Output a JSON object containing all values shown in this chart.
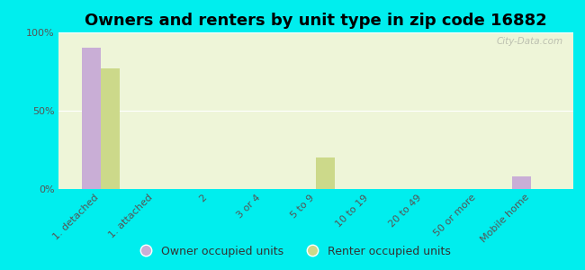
{
  "title": "Owners and renters by unit type in zip code 16882",
  "categories": [
    "1. detached",
    "1. attached",
    "2",
    "3 or 4",
    "5 to 9",
    "10 to 19",
    "20 to 49",
    "50 or more",
    "Mobile home"
  ],
  "owner_values": [
    90,
    0,
    0,
    0,
    0,
    0,
    0,
    0,
    8
  ],
  "renter_values": [
    77,
    0,
    0,
    0,
    20,
    0,
    0,
    0,
    0
  ],
  "owner_color": "#c9aed6",
  "renter_color": "#ccd98a",
  "background_outer": "#00eeee",
  "background_inner": "#eef5d8",
  "ylim": [
    0,
    100
  ],
  "yticks": [
    0,
    50,
    100
  ],
  "ytick_labels": [
    "0%",
    "50%",
    "100%"
  ],
  "legend_owner": "Owner occupied units",
  "legend_renter": "Renter occupied units",
  "bar_width": 0.35,
  "title_fontsize": 13,
  "tick_fontsize": 8,
  "legend_fontsize": 9,
  "watermark": "City-Data.com"
}
